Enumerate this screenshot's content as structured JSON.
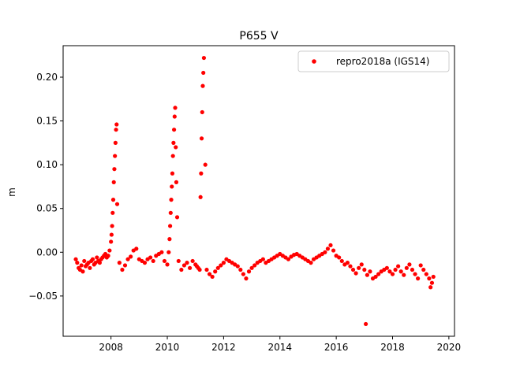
{
  "chart_data": {
    "type": "scatter",
    "title": "P655 V",
    "xlabel": "",
    "ylabel": "m",
    "xlim": [
      2006.3,
      2020.2
    ],
    "ylim": [
      -0.096,
      0.236
    ],
    "xticks": [
      2008,
      2010,
      2012,
      2014,
      2016,
      2018,
      2020
    ],
    "yticks": [
      -0.05,
      0.0,
      0.05,
      0.1,
      0.15,
      0.2
    ],
    "xtick_labels": [
      "2008",
      "2010",
      "2012",
      "2014",
      "2016",
      "2018",
      "2020"
    ],
    "ytick_labels": [
      "−0.05",
      "0.00",
      "0.05",
      "0.10",
      "0.15",
      "0.20"
    ],
    "grid": false,
    "legend_position": "upper-right",
    "series": [
      {
        "name": "repro2018a (IGS14)",
        "color": "#ff0000",
        "marker": "circle",
        "x": [
          2006.75,
          2006.8,
          2006.85,
          2006.9,
          2006.95,
          2007.0,
          2007.05,
          2007.1,
          2007.15,
          2007.2,
          2007.25,
          2007.3,
          2007.35,
          2007.4,
          2007.45,
          2007.5,
          2007.55,
          2007.6,
          2007.65,
          2007.7,
          2007.75,
          2007.8,
          2007.85,
          2007.9,
          2007.95,
          2008.0,
          2008.02,
          2008.04,
          2008.06,
          2008.08,
          2008.1,
          2008.12,
          2008.14,
          2008.16,
          2008.18,
          2008.2,
          2008.22,
          2008.3,
          2008.4,
          2008.5,
          2008.6,
          2008.7,
          2008.8,
          2008.9,
          2009.0,
          2009.1,
          2009.2,
          2009.3,
          2009.4,
          2009.5,
          2009.6,
          2009.7,
          2009.8,
          2009.9,
          2010.0,
          2010.05,
          2010.08,
          2010.1,
          2010.12,
          2010.14,
          2010.16,
          2010.18,
          2010.2,
          2010.22,
          2010.24,
          2010.26,
          2010.28,
          2010.3,
          2010.32,
          2010.35,
          2010.4,
          2010.5,
          2010.6,
          2010.7,
          2010.8,
          2010.9,
          2011.0,
          2011.05,
          2011.1,
          2011.15,
          2011.18,
          2011.2,
          2011.22,
          2011.24,
          2011.26,
          2011.28,
          2011.3,
          2011.35,
          2011.4,
          2011.5,
          2011.6,
          2011.7,
          2011.8,
          2011.9,
          2012.0,
          2012.1,
          2012.2,
          2012.3,
          2012.4,
          2012.5,
          2012.6,
          2012.7,
          2012.8,
          2012.9,
          2013.0,
          2013.1,
          2013.2,
          2013.3,
          2013.4,
          2013.5,
          2013.6,
          2013.7,
          2013.8,
          2013.9,
          2014.0,
          2014.1,
          2014.2,
          2014.3,
          2014.4,
          2014.5,
          2014.6,
          2014.7,
          2014.8,
          2014.9,
          2015.0,
          2015.1,
          2015.2,
          2015.3,
          2015.4,
          2015.5,
          2015.6,
          2015.7,
          2015.8,
          2015.9,
          2016.0,
          2016.1,
          2016.2,
          2016.3,
          2016.4,
          2016.5,
          2016.6,
          2016.7,
          2016.8,
          2016.9,
          2017.0,
          2017.05,
          2017.1,
          2017.2,
          2017.3,
          2017.4,
          2017.5,
          2017.6,
          2017.7,
          2017.8,
          2017.9,
          2018.0,
          2018.1,
          2018.2,
          2018.3,
          2018.4,
          2018.5,
          2018.6,
          2018.7,
          2018.8,
          2018.9,
          2019.0,
          2019.1,
          2019.2,
          2019.3,
          2019.35,
          2019.4,
          2019.45
        ],
        "y": [
          -0.008,
          -0.012,
          -0.018,
          -0.02,
          -0.015,
          -0.022,
          -0.01,
          -0.016,
          -0.014,
          -0.012,
          -0.018,
          -0.01,
          -0.008,
          -0.014,
          -0.012,
          -0.006,
          -0.01,
          -0.012,
          -0.008,
          -0.006,
          -0.004,
          -0.002,
          -0.006,
          -0.004,
          0.002,
          0.012,
          0.02,
          0.03,
          0.045,
          0.06,
          0.08,
          0.095,
          0.11,
          0.125,
          0.14,
          0.146,
          0.055,
          -0.012,
          -0.02,
          -0.015,
          -0.008,
          -0.005,
          0.002,
          0.004,
          -0.008,
          -0.01,
          -0.012,
          -0.008,
          -0.006,
          -0.01,
          -0.004,
          -0.002,
          0.0,
          -0.01,
          -0.014,
          0.0,
          0.015,
          0.03,
          0.045,
          0.06,
          0.075,
          0.09,
          0.11,
          0.125,
          0.14,
          0.155,
          0.165,
          0.12,
          0.08,
          0.04,
          -0.01,
          -0.02,
          -0.015,
          -0.012,
          -0.018,
          -0.01,
          -0.014,
          -0.016,
          -0.018,
          -0.02,
          0.063,
          0.09,
          0.13,
          0.16,
          0.19,
          0.205,
          0.222,
          0.1,
          -0.02,
          -0.025,
          -0.028,
          -0.022,
          -0.018,
          -0.015,
          -0.012,
          -0.008,
          -0.01,
          -0.012,
          -0.014,
          -0.016,
          -0.02,
          -0.025,
          -0.03,
          -0.022,
          -0.018,
          -0.015,
          -0.012,
          -0.01,
          -0.008,
          -0.012,
          -0.01,
          -0.008,
          -0.006,
          -0.004,
          -0.002,
          -0.004,
          -0.006,
          -0.008,
          -0.005,
          -0.003,
          -0.002,
          -0.004,
          -0.006,
          -0.008,
          -0.01,
          -0.012,
          -0.008,
          -0.006,
          -0.004,
          -0.002,
          0.0,
          0.004,
          0.008,
          0.002,
          -0.004,
          -0.006,
          -0.01,
          -0.014,
          -0.012,
          -0.016,
          -0.02,
          -0.024,
          -0.018,
          -0.014,
          -0.02,
          -0.082,
          -0.026,
          -0.022,
          -0.03,
          -0.028,
          -0.025,
          -0.022,
          -0.02,
          -0.018,
          -0.022,
          -0.025,
          -0.02,
          -0.016,
          -0.022,
          -0.026,
          -0.018,
          -0.014,
          -0.02,
          -0.025,
          -0.03,
          -0.015,
          -0.02,
          -0.025,
          -0.03,
          -0.04,
          -0.035,
          -0.028
        ]
      }
    ]
  }
}
